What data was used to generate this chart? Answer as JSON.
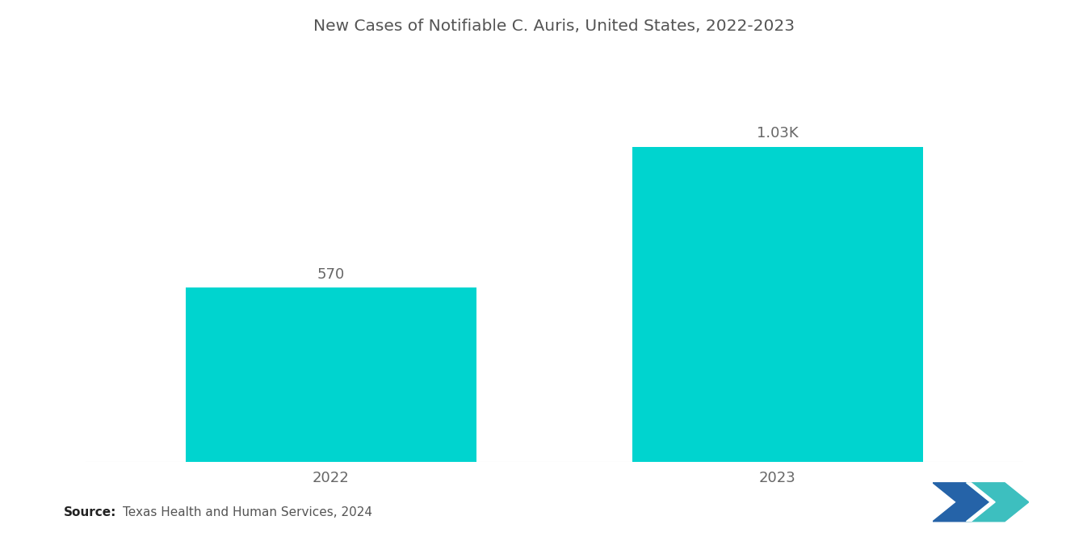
{
  "title": "New Cases of Notifiable C. Auris, United States, 2022-2023",
  "categories": [
    "2022",
    "2023"
  ],
  "values": [
    570,
    1030
  ],
  "bar_labels": [
    "570",
    "1.03K"
  ],
  "bar_color": "#00D4CF",
  "background_color": "#ffffff",
  "title_fontsize": 14.5,
  "label_fontsize": 13,
  "tick_fontsize": 13,
  "source_bold": "Source:",
  "source_text": "Texas Health and Human Services, 2024",
  "ylim": [
    0,
    1300
  ],
  "bar_width": 0.65,
  "xlim": [
    -0.55,
    1.55
  ]
}
